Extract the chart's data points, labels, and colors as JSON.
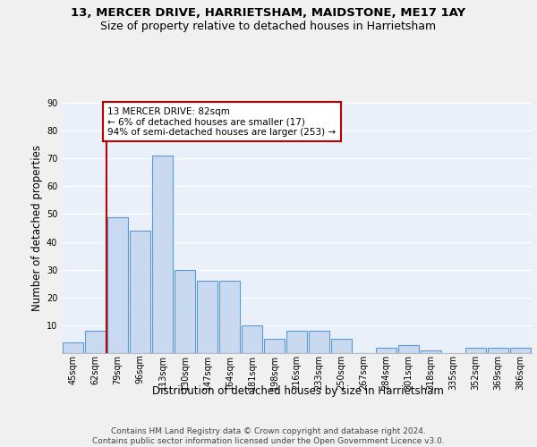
{
  "title1": "13, MERCER DRIVE, HARRIETSHAM, MAIDSTONE, ME17 1AY",
  "title2": "Size of property relative to detached houses in Harrietsham",
  "xlabel": "Distribution of detached houses by size in Harrietsham",
  "ylabel": "Number of detached properties",
  "categories": [
    "45sqm",
    "62sqm",
    "79sqm",
    "96sqm",
    "113sqm",
    "130sqm",
    "147sqm",
    "164sqm",
    "181sqm",
    "198sqm",
    "216sqm",
    "233sqm",
    "250sqm",
    "267sqm",
    "284sqm",
    "301sqm",
    "318sqm",
    "335sqm",
    "352sqm",
    "369sqm",
    "386sqm"
  ],
  "values": [
    4,
    8,
    49,
    44,
    71,
    30,
    26,
    26,
    10,
    5,
    8,
    8,
    5,
    0,
    2,
    3,
    1,
    0,
    2,
    2,
    2
  ],
  "bar_color": "#c9d9f0",
  "bar_edge_color": "#5b9bd5",
  "bar_edge_width": 0.8,
  "marker_index": 2,
  "marker_color": "#c00000",
  "annotation_line1": "13 MERCER DRIVE: 82sqm",
  "annotation_line2": "← 6% of detached houses are smaller (17)",
  "annotation_line3": "94% of semi-detached houses are larger (253) →",
  "annotation_box_color": "#ffffff",
  "annotation_box_edge": "#c00000",
  "bg_color": "#eaf0fa",
  "grid_color": "#ffffff",
  "fig_bg_color": "#f0f0f0",
  "ylim": [
    0,
    90
  ],
  "yticks": [
    0,
    10,
    20,
    30,
    40,
    50,
    60,
    70,
    80,
    90
  ],
  "footer_text": "Contains HM Land Registry data © Crown copyright and database right 2024.\nContains public sector information licensed under the Open Government Licence v3.0.",
  "title1_fontsize": 9.5,
  "title2_fontsize": 9,
  "axis_label_fontsize": 8.5,
  "tick_fontsize": 7,
  "footer_fontsize": 6.5,
  "annotation_fontsize": 7.5
}
